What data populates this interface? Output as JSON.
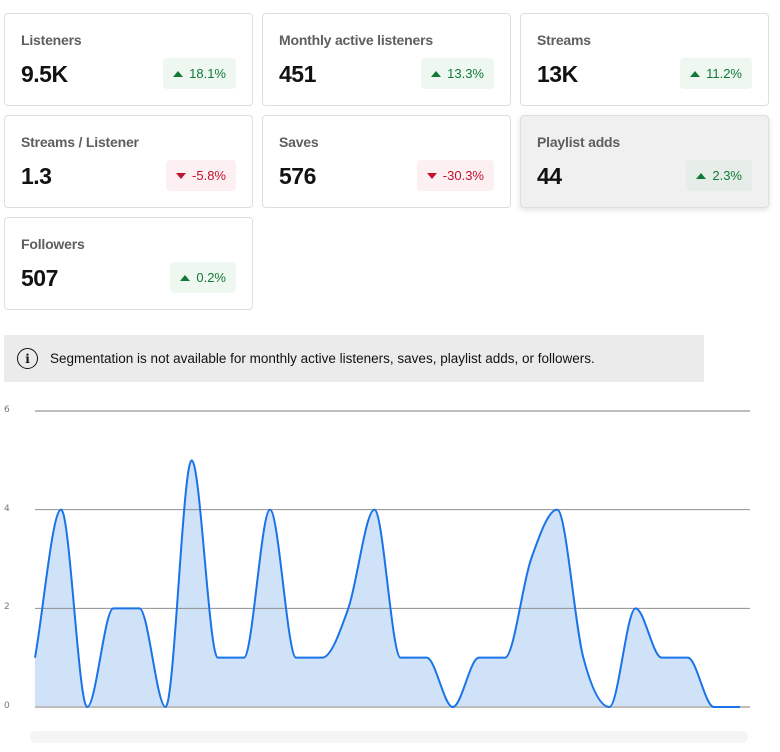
{
  "metrics": [
    {
      "title": "Listeners",
      "value": "9.5K",
      "change": "18.1%",
      "direction": "up"
    },
    {
      "title": "Monthly active listeners",
      "value": "451",
      "change": "13.3%",
      "direction": "up"
    },
    {
      "title": "Streams",
      "value": "13K",
      "change": "11.2%",
      "direction": "up"
    },
    {
      "title": "Streams / Listener",
      "value": "1.3",
      "change": "-5.8%",
      "direction": "down"
    },
    {
      "title": "Saves",
      "value": "576",
      "change": "-30.3%",
      "direction": "down"
    },
    {
      "title": "Playlist adds",
      "value": "44",
      "change": "2.3%",
      "direction": "up"
    },
    {
      "title": "Followers",
      "value": "507",
      "change": "0.2%",
      "direction": "up"
    }
  ],
  "banner": {
    "icon": "info-icon",
    "text": "Segmentation is not available for monthly active listeners, saves, playlist adds, or followers."
  },
  "colors": {
    "positive": "#117a37",
    "negative": "#c4122d",
    "line": "#1a73e8",
    "fill": "#cfe2f8"
  },
  "chart_data": {
    "type": "area",
    "title": "",
    "xlabel": "",
    "ylabel": "",
    "x": [
      0,
      1,
      2,
      3,
      4,
      5,
      6,
      7,
      8,
      9,
      10,
      11,
      12,
      13,
      14,
      15,
      16,
      17,
      18,
      19,
      20,
      21,
      22,
      23,
      24,
      25,
      26,
      27
    ],
    "values": [
      1,
      4,
      0,
      2,
      2,
      0,
      5,
      1,
      1,
      4,
      1,
      1,
      2,
      4,
      1,
      1,
      0,
      1,
      1,
      3,
      4,
      1,
      0,
      2,
      1,
      1,
      0,
      0
    ],
    "yticks": [
      "0",
      "2",
      "4",
      "6"
    ],
    "ylim": [
      0,
      6
    ],
    "grid": true,
    "legend": null
  }
}
